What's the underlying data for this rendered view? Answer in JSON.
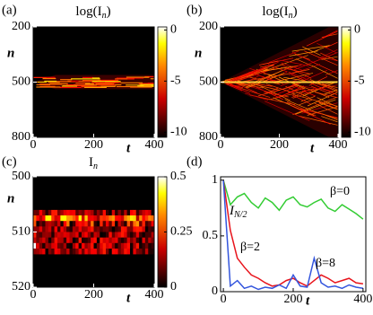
{
  "chart_data": [
    {
      "type": "heatmap",
      "panel_label": "(a)",
      "title": [
        "log(I",
        "n",
        ")"
      ],
      "xlabel": "t",
      "ylabel": "n",
      "xlim": [
        0,
        400
      ],
      "xticks": [
        0,
        200,
        400
      ],
      "ylim": [
        200,
        800
      ],
      "yticks": [
        200,
        500,
        800
      ],
      "yaxis_inverted": true,
      "clim": [
        -10.5,
        0.3
      ],
      "cticks": [
        0,
        -5,
        -10
      ]
    },
    {
      "type": "heatmap",
      "panel_label": "(b)",
      "title": [
        "log(I",
        "n",
        ")"
      ],
      "xlabel": "t",
      "ylabel": "n",
      "xlim": [
        0,
        400
      ],
      "xticks": [
        0,
        200,
        400
      ],
      "ylim": [
        200,
        800
      ],
      "yticks": [
        200,
        500,
        800
      ],
      "yaxis_inverted": true,
      "clim": [
        -10.5,
        0.3
      ],
      "cticks": [
        0,
        -5,
        -10
      ]
    },
    {
      "type": "heatmap",
      "panel_label": "(c)",
      "title": [
        "I",
        "n"
      ],
      "xlabel": "t",
      "ylabel": "n",
      "xlim": [
        0,
        400
      ],
      "xticks": [
        0,
        200,
        400
      ],
      "ylim": [
        500,
        520
      ],
      "yticks": [
        500,
        510,
        520
      ],
      "yaxis_inverted": true,
      "clim": [
        0,
        0.5
      ],
      "cticks": [
        0.5,
        0.25,
        0
      ]
    },
    {
      "type": "line",
      "panel_label": "(d)",
      "ylabel": [
        "I",
        "N/2"
      ],
      "xlabel": "t",
      "xlim": [
        -8,
        408
      ],
      "xticks": [
        0,
        200,
        400
      ],
      "ylim": [
        0,
        1.03
      ],
      "yticks": [
        0,
        0.5,
        1
      ],
      "x": [
        0,
        20,
        40,
        60,
        80,
        100,
        120,
        140,
        160,
        180,
        200,
        220,
        240,
        260,
        280,
        300,
        320,
        340,
        360,
        380,
        400
      ],
      "series": [
        {
          "name": "β=0",
          "color": "#33cc33",
          "values": [
            1,
            0.78,
            0.85,
            0.88,
            0.8,
            0.75,
            0.84,
            0.8,
            0.73,
            0.82,
            0.85,
            0.78,
            0.76,
            0.8,
            0.83,
            0.75,
            0.72,
            0.78,
            0.74,
            0.7,
            0.65
          ]
        },
        {
          "name": "β=2",
          "color": "#e8141c",
          "values": [
            1,
            0.55,
            0.3,
            0.22,
            0.15,
            0.12,
            0.08,
            0.05,
            0.06,
            0.1,
            0.12,
            0.08,
            0.05,
            0.1,
            0.15,
            0.12,
            0.08,
            0.1,
            0.12,
            0.08,
            0.07
          ]
        },
        {
          "name": "β=8",
          "color": "#3355dd",
          "values": [
            1,
            0.05,
            0.1,
            0.03,
            0.05,
            0.02,
            0.04,
            0.03,
            0.06,
            0.03,
            0.15,
            0.05,
            0.04,
            0.3,
            0.08,
            0.04,
            0.05,
            0.03,
            0.06,
            0.04,
            0.03
          ]
        }
      ]
    }
  ]
}
